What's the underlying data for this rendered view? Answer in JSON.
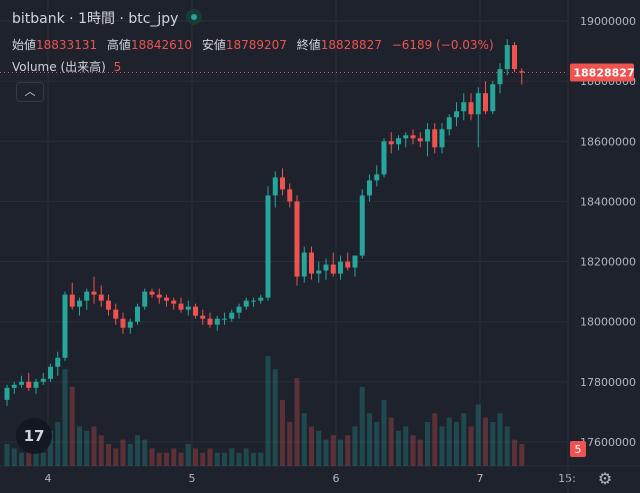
{
  "header": {
    "title": "bitbank · 1時間 · btc_jpy",
    "open_label": "始値",
    "open_value": "18833131",
    "high_label": "高値",
    "high_value": "18842610",
    "low_label": "安値",
    "low_value": "18789207",
    "close_label": "終値",
    "close_value": "18828827",
    "change": "−6189 (−0.03%)"
  },
  "volume_legend": {
    "label": "Volume (出来高)",
    "value": "5"
  },
  "icons": {
    "collapse": "chevron-up-icon",
    "logo": "tradingview-logo",
    "settings": "gear-icon",
    "live": "live-status-icon"
  },
  "colors": {
    "up": "#26a69a",
    "down": "#ef5350",
    "background": "#1e222d",
    "grid": "#2a2e39"
  },
  "chart_data": {
    "type": "candlestick",
    "title": "bitbank · 1時間 · btc_jpy",
    "y_ticks": [
      17600000,
      17800000,
      18000000,
      18200000,
      18400000,
      18600000,
      18800000,
      19000000
    ],
    "ylim": [
      17520000,
      19070000
    ],
    "x_ticks": [
      "4",
      "5",
      "6",
      "7",
      "15:"
    ],
    "last_price": "18828827",
    "last_volume": "5",
    "candles": [
      [
        17740000,
        17790000,
        17720000,
        17780000,
        5
      ],
      [
        17780000,
        17800000,
        17760000,
        17790000,
        4
      ],
      [
        17790000,
        17820000,
        17780000,
        17800000,
        3
      ],
      [
        17800000,
        17830000,
        17770000,
        17780000,
        4
      ],
      [
        17780000,
        17810000,
        17760000,
        17800000,
        5
      ],
      [
        17800000,
        17830000,
        17790000,
        17810000,
        3
      ],
      [
        17810000,
        17860000,
        17800000,
        17850000,
        8
      ],
      [
        17850000,
        17900000,
        17820000,
        17880000,
        10
      ],
      [
        17880000,
        18100000,
        17870000,
        18090000,
        22
      ],
      [
        18090000,
        18130000,
        18040000,
        18050000,
        18
      ],
      [
        18050000,
        18080000,
        18020000,
        18070000,
        9
      ],
      [
        18070000,
        18110000,
        18040000,
        18100000,
        8
      ],
      [
        18100000,
        18150000,
        18060000,
        18090000,
        9
      ],
      [
        18090000,
        18120000,
        18050000,
        18070000,
        7
      ],
      [
        18070000,
        18090000,
        18020000,
        18040000,
        5
      ],
      [
        18040000,
        18060000,
        17990000,
        18010000,
        4
      ],
      [
        18010000,
        18030000,
        17960000,
        17980000,
        6
      ],
      [
        17980000,
        18010000,
        17960000,
        18000000,
        5
      ],
      [
        18000000,
        18060000,
        17990000,
        18050000,
        7
      ],
      [
        18050000,
        18110000,
        18040000,
        18100000,
        6
      ],
      [
        18100000,
        18110000,
        18080000,
        18090000,
        4
      ],
      [
        18090000,
        18110000,
        18060000,
        18080000,
        3
      ],
      [
        18080000,
        18090000,
        18050000,
        18070000,
        3
      ],
      [
        18070000,
        18080000,
        18040000,
        18060000,
        4
      ],
      [
        18060000,
        18080000,
        18030000,
        18040000,
        3
      ],
      [
        18040000,
        18070000,
        18020000,
        18050000,
        5
      ],
      [
        18050000,
        18060000,
        18010000,
        18020000,
        4
      ],
      [
        18020000,
        18040000,
        17990000,
        18010000,
        3
      ],
      [
        18010000,
        18030000,
        17980000,
        17990000,
        4
      ],
      [
        17990000,
        18020000,
        17970000,
        18010000,
        3
      ],
      [
        18010000,
        18030000,
        17990000,
        18010000,
        3
      ],
      [
        18010000,
        18040000,
        18000000,
        18030000,
        4
      ],
      [
        18030000,
        18060000,
        18010000,
        18050000,
        3
      ],
      [
        18050000,
        18080000,
        18040000,
        18070000,
        4
      ],
      [
        18070000,
        18080000,
        18050000,
        18070000,
        3
      ],
      [
        18070000,
        18090000,
        18060000,
        18080000,
        3
      ],
      [
        18080000,
        18450000,
        18070000,
        18420000,
        25
      ],
      [
        18420000,
        18500000,
        18380000,
        18480000,
        22
      ],
      [
        18480000,
        18510000,
        18420000,
        18440000,
        15
      ],
      [
        18440000,
        18460000,
        18380000,
        18400000,
        10
      ],
      [
        18400000,
        18420000,
        18120000,
        18150000,
        20
      ],
      [
        18150000,
        18250000,
        18130000,
        18230000,
        12
      ],
      [
        18230000,
        18250000,
        18140000,
        18160000,
        9
      ],
      [
        18160000,
        18200000,
        18130000,
        18170000,
        8
      ],
      [
        18170000,
        18210000,
        18140000,
        18190000,
        6
      ],
      [
        18190000,
        18230000,
        18150000,
        18160000,
        7
      ],
      [
        18160000,
        18220000,
        18140000,
        18200000,
        6
      ],
      [
        18200000,
        18230000,
        18170000,
        18180000,
        7
      ],
      [
        18180000,
        18220000,
        18150000,
        18220000,
        9
      ],
      [
        18220000,
        18440000,
        18210000,
        18420000,
        18
      ],
      [
        18420000,
        18490000,
        18400000,
        18470000,
        12
      ],
      [
        18470000,
        18520000,
        18450000,
        18490000,
        10
      ],
      [
        18490000,
        18610000,
        18480000,
        18600000,
        15
      ],
      [
        18600000,
        18630000,
        18560000,
        18590000,
        11
      ],
      [
        18590000,
        18620000,
        18570000,
        18610000,
        8
      ],
      [
        18610000,
        18630000,
        18580000,
        18620000,
        9
      ],
      [
        18620000,
        18640000,
        18590000,
        18610000,
        7
      ],
      [
        18610000,
        18630000,
        18580000,
        18600000,
        6
      ],
      [
        18600000,
        18660000,
        18550000,
        18640000,
        10
      ],
      [
        18640000,
        18660000,
        18560000,
        18580000,
        12
      ],
      [
        18580000,
        18660000,
        18560000,
        18640000,
        9
      ],
      [
        18640000,
        18690000,
        18620000,
        18680000,
        11
      ],
      [
        18680000,
        18730000,
        18650000,
        18700000,
        10
      ],
      [
        18700000,
        18760000,
        18670000,
        18730000,
        12
      ],
      [
        18730000,
        18760000,
        18670000,
        18690000,
        9
      ],
      [
        18690000,
        18780000,
        18580000,
        18760000,
        14
      ],
      [
        18760000,
        18800000,
        18690000,
        18700000,
        11
      ],
      [
        18700000,
        18800000,
        18690000,
        18790000,
        10
      ],
      [
        18790000,
        18860000,
        18760000,
        18840000,
        12
      ],
      [
        18840000,
        18940000,
        18820000,
        18920000,
        9
      ],
      [
        18920000,
        18930000,
        18830000,
        18840000,
        6
      ],
      [
        18833131,
        18842610,
        18789207,
        18828827,
        5
      ]
    ]
  }
}
